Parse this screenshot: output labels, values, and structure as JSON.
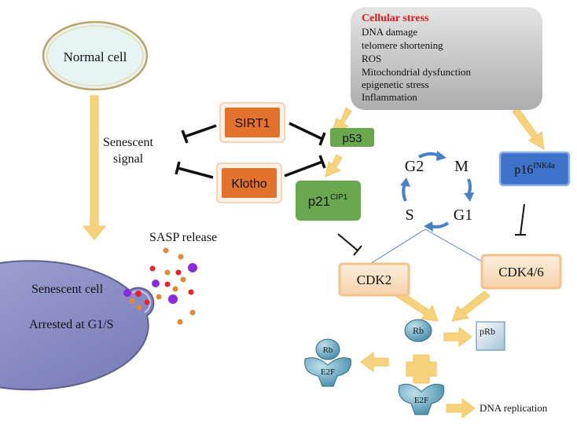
{
  "normal_cell": {
    "label": "Normal cell"
  },
  "senescent_signal": {
    "line1": "Senescent",
    "line2": "signal"
  },
  "cellular_stress": {
    "title": "Cellular stress",
    "items": [
      "DNA damage",
      "telomere shortening",
      "ROS",
      "Mitochondrial dysfunction",
      "epigenetic stress",
      "Inflammation"
    ]
  },
  "sirt1": {
    "label": "SIRT1"
  },
  "klotho": {
    "label": "Klotho"
  },
  "p53": {
    "label": "p53"
  },
  "p21": {
    "base": "p21",
    "sup": "CIP1"
  },
  "p16": {
    "base": "p16",
    "sup": "INK4a"
  },
  "cell_cycle": {
    "g2": "G2",
    "m": "M",
    "g1": "G1",
    "s": "S"
  },
  "cdk2": {
    "label": "CDK2"
  },
  "cdk46": {
    "label": "CDK4/6"
  },
  "sasp": {
    "label": "SASP release"
  },
  "senescent_cell": {
    "line1": "Senescent cell",
    "line2": "Arrested at G1/S"
  },
  "rb": {
    "label": "Rb"
  },
  "prb": {
    "label": "pRb"
  },
  "complex": {
    "rb": "Rb",
    "e2f": "E2F"
  },
  "free_e2f": {
    "label": "E2F"
  },
  "dna_replication": {
    "label": "DNA replication"
  },
  "colors": {
    "orange_box": "#e3732c",
    "green_box": "#6aa84f",
    "blue_box": "#3d72c9",
    "peach_box": "#fbe3c8",
    "arrow_yellow": "#f7d27c",
    "stress_red": "#e01b1b",
    "cell_purple": "#8c8fc6",
    "normal_cell": "#e6f4f2",
    "cycle_blue": "#4a7fc9",
    "protein_blue": "#5aa0b8"
  }
}
